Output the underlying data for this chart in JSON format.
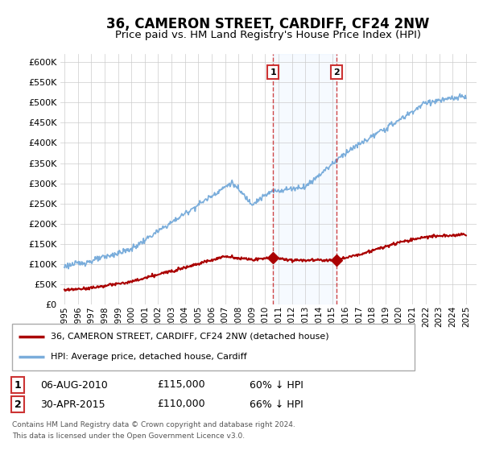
{
  "title": "36, CAMERON STREET, CARDIFF, CF24 2NW",
  "subtitle": "Price paid vs. HM Land Registry's House Price Index (HPI)",
  "title_fontsize": 12,
  "subtitle_fontsize": 9.5,
  "ylim": [
    0,
    620000
  ],
  "yticks": [
    0,
    50000,
    100000,
    150000,
    200000,
    250000,
    300000,
    350000,
    400000,
    450000,
    500000,
    550000,
    600000
  ],
  "ytick_labels": [
    "£0",
    "£50K",
    "£100K",
    "£150K",
    "£200K",
    "£250K",
    "£300K",
    "£350K",
    "£400K",
    "£450K",
    "£500K",
    "£550K",
    "£600K"
  ],
  "hpi_color": "#7aaddb",
  "price_color": "#aa0000",
  "sale1_date": "06-AUG-2010",
  "sale1_price": "£115,000",
  "sale1_pct": "60% ↓ HPI",
  "sale1_year": 2010.58,
  "sale2_date": "30-APR-2015",
  "sale2_price": "£110,000",
  "sale2_pct": "66% ↓ HPI",
  "sale2_year": 2015.33,
  "sale1_value": 115000,
  "sale2_value": 110000,
  "legend_line1": "36, CAMERON STREET, CARDIFF, CF24 2NW (detached house)",
  "legend_line2": "HPI: Average price, detached house, Cardiff",
  "footnote1": "Contains HM Land Registry data © Crown copyright and database right 2024.",
  "footnote2": "This data is licensed under the Open Government Licence v3.0.",
  "bg_color": "#ffffff",
  "grid_color": "#cccccc",
  "highlight_color": "#ddeeff",
  "dashed_color": "#cc3333"
}
